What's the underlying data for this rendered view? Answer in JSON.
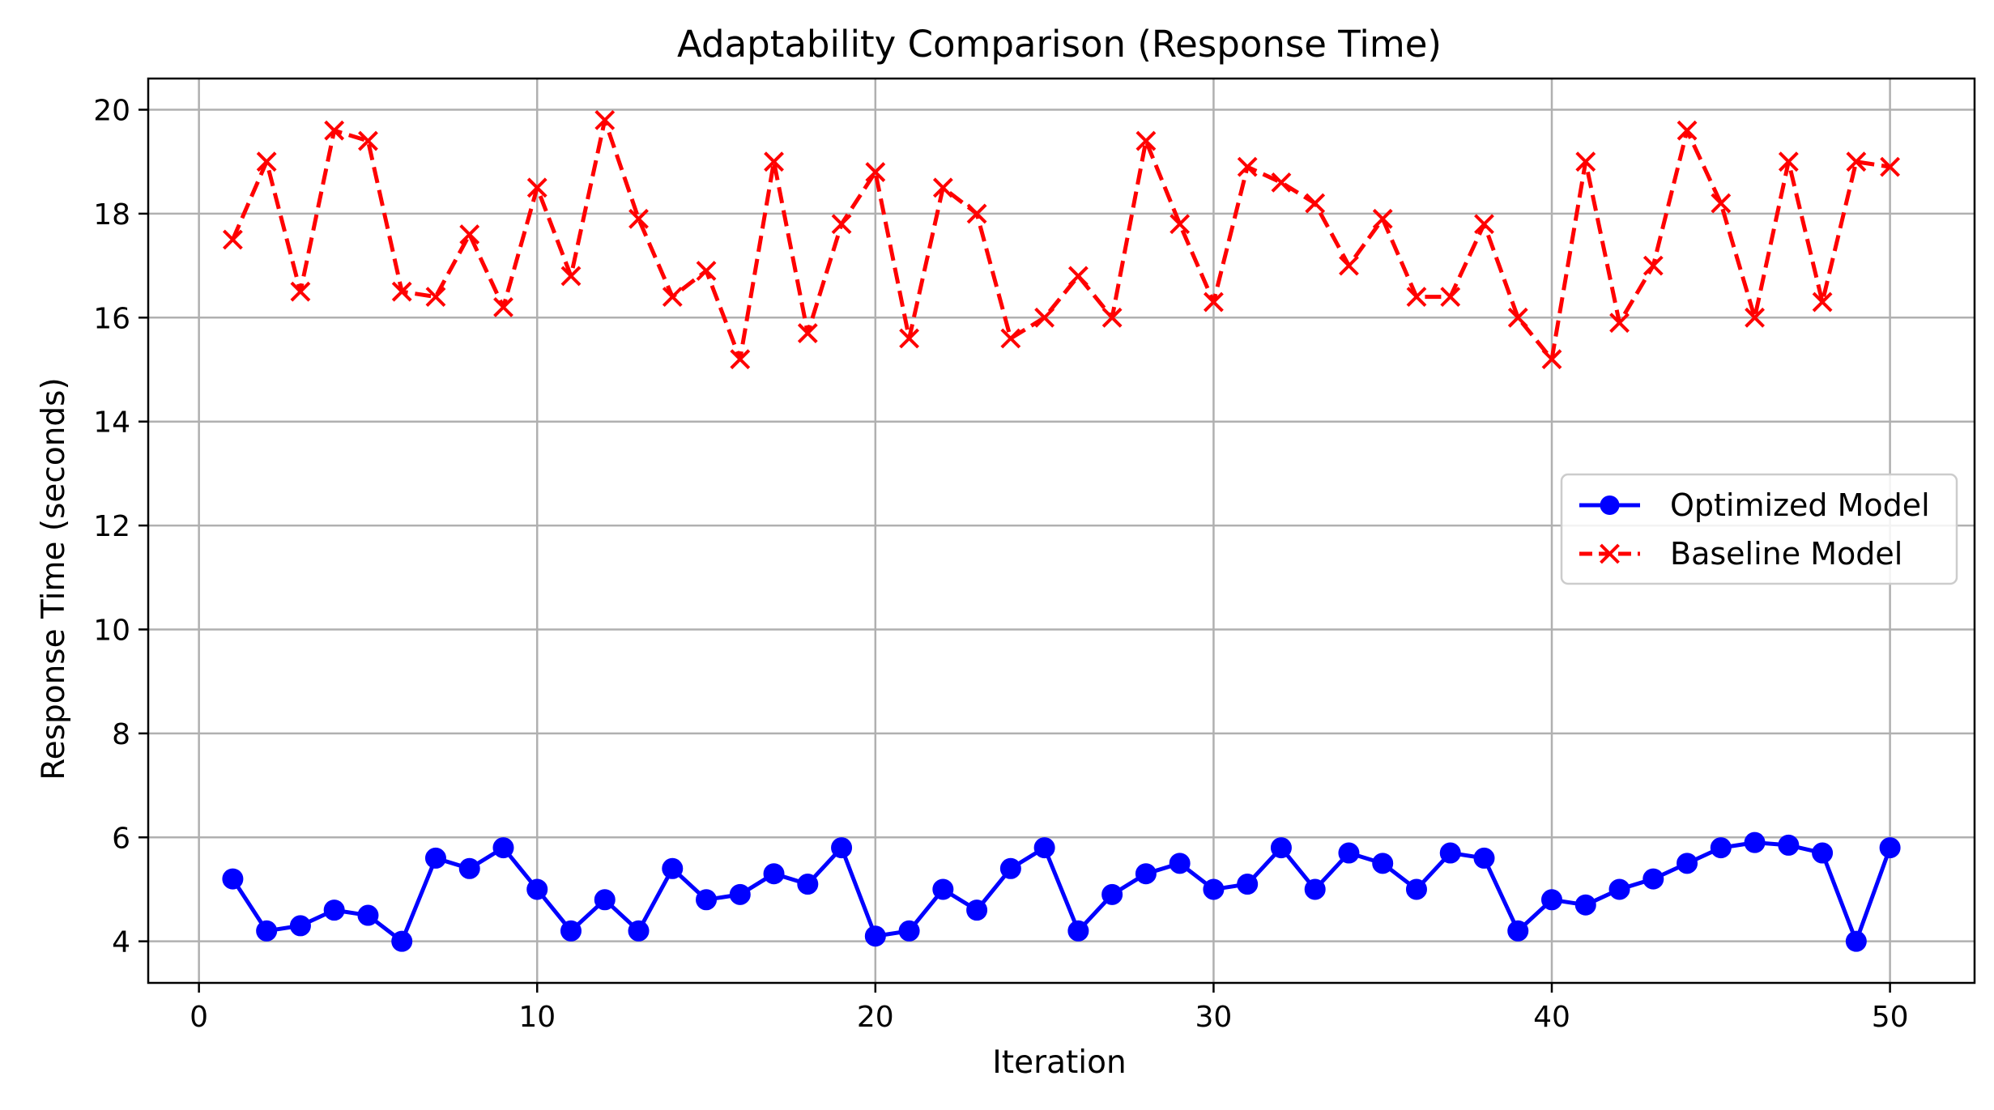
{
  "chart_data": {
    "type": "line",
    "title": "Adaptability Comparison (Response Time)",
    "xlabel": "Iteration",
    "ylabel": "Response Time (seconds)",
    "xlim": [
      -1.5,
      52.5
    ],
    "ylim": [
      3.2,
      20.6
    ],
    "grid": true,
    "legend_position": "center-right",
    "x_ticks": [
      0,
      10,
      20,
      30,
      40,
      50
    ],
    "y_ticks": [
      4,
      6,
      8,
      10,
      12,
      14,
      16,
      18,
      20
    ],
    "x": [
      1,
      2,
      3,
      4,
      5,
      6,
      7,
      8,
      9,
      10,
      11,
      12,
      13,
      14,
      15,
      16,
      17,
      18,
      19,
      20,
      21,
      22,
      23,
      24,
      25,
      26,
      27,
      28,
      29,
      30,
      31,
      32,
      33,
      34,
      35,
      36,
      37,
      38,
      39,
      40,
      41,
      42,
      43,
      44,
      45,
      46,
      47,
      48,
      49,
      50
    ],
    "series": [
      {
        "name": "Optimized Model",
        "color": "#0000ff",
        "line_style": "solid",
        "marker": "circle",
        "values": [
          5.2,
          4.2,
          4.3,
          4.6,
          4.5,
          4.0,
          5.6,
          5.4,
          5.8,
          5.0,
          4.2,
          4.8,
          4.2,
          5.4,
          4.8,
          4.9,
          5.3,
          5.1,
          5.8,
          4.1,
          4.2,
          5.0,
          4.6,
          5.4,
          5.8,
          4.2,
          4.9,
          5.3,
          5.5,
          5.0,
          5.1,
          5.8,
          5.0,
          5.7,
          5.5,
          5.0,
          5.7,
          5.6,
          4.2,
          4.8,
          4.7,
          5.0,
          5.2,
          5.5,
          5.8,
          5.9,
          5.85,
          5.7,
          4.0,
          5.8
        ]
      },
      {
        "name": "Baseline Model",
        "color": "#ff0000",
        "line_style": "dashed",
        "marker": "x",
        "values": [
          17.5,
          19.0,
          16.5,
          19.6,
          19.4,
          16.5,
          16.4,
          17.6,
          16.2,
          18.5,
          16.8,
          19.8,
          17.9,
          16.4,
          16.9,
          15.2,
          19.0,
          15.7,
          17.8,
          18.8,
          15.6,
          18.5,
          18.0,
          15.6,
          16.0,
          16.8,
          16.0,
          19.4,
          17.8,
          16.3,
          18.9,
          18.6,
          18.2,
          17.0,
          17.9,
          16.4,
          16.4,
          17.8,
          16.0,
          15.2,
          19.0,
          15.9,
          17.0,
          19.6,
          18.2,
          16.0,
          19.0,
          16.3,
          19.0,
          18.9
        ]
      }
    ]
  }
}
